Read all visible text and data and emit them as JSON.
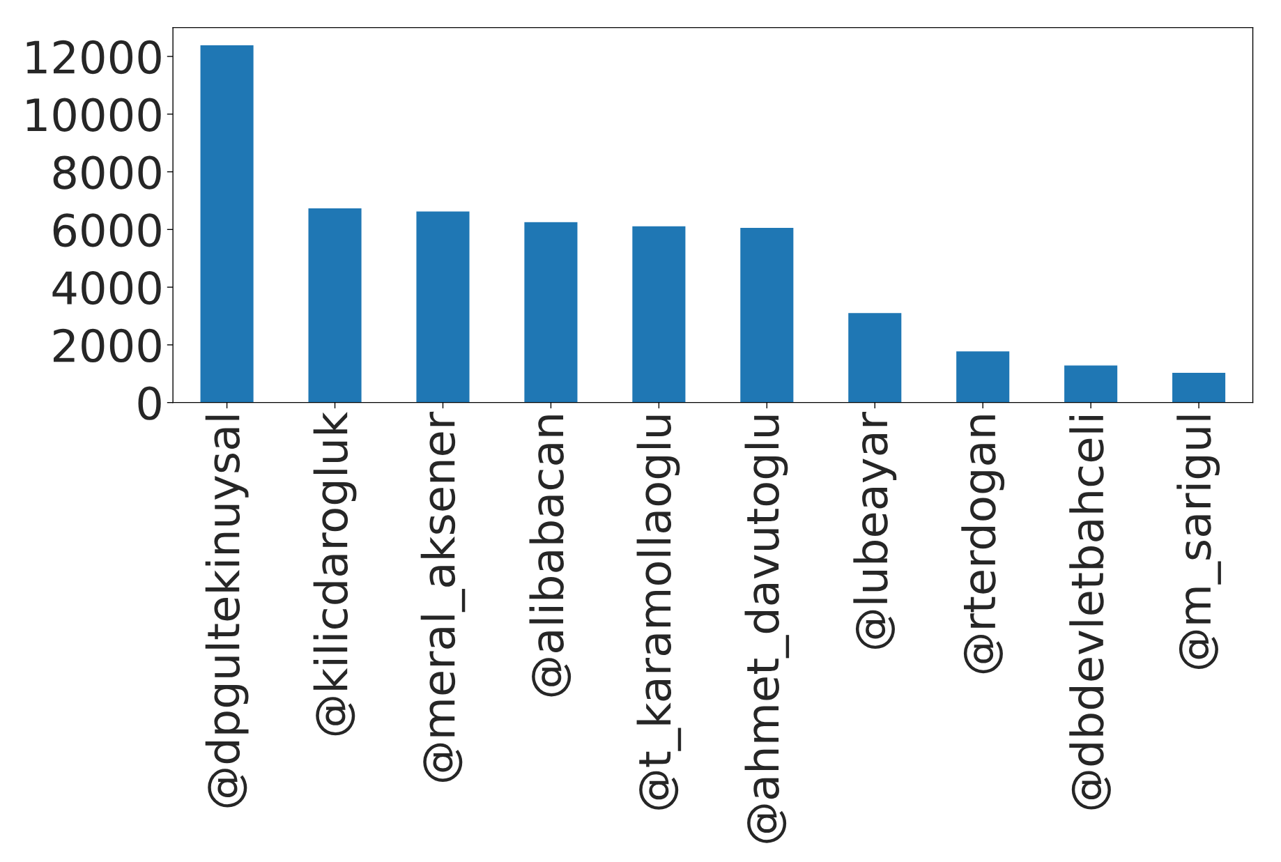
{
  "chart_data": {
    "type": "bar",
    "categories": [
      "@dpgultekinuysal",
      "@kilicdarogluk",
      "@meral_aksener",
      "@alibabacan",
      "@t_karamollaoglu",
      "@ahmet_davutoglu",
      "@lubeayar",
      "@rterdogan",
      "@dbdevletbahceli",
      "@m_sarigul"
    ],
    "values": [
      12400,
      6750,
      6640,
      6270,
      6130,
      6070,
      3120,
      1790,
      1300,
      1050
    ],
    "color": "#1f77b4",
    "ylim": [
      0,
      13000
    ],
    "yticks": [
      0,
      2000,
      4000,
      6000,
      8000,
      10000,
      12000
    ],
    "grid": false,
    "legend": false
  }
}
